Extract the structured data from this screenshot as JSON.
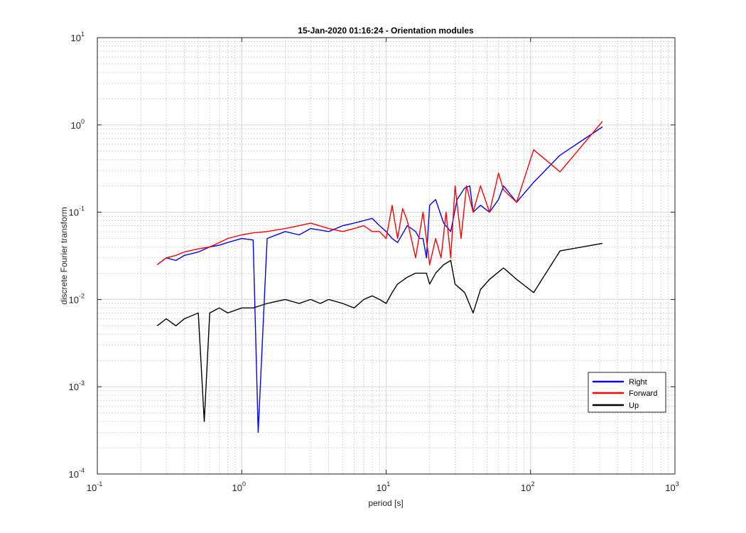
{
  "chart_data": {
    "type": "line",
    "title": "15-Jan-2020 01:16:24 - Orientation modules",
    "xlabel": "period [s]",
    "ylabel": "discrete Fourier transform",
    "xscale": "log",
    "yscale": "log",
    "xlim": [
      0.1,
      1000
    ],
    "ylim": [
      0.0001,
      10
    ],
    "grid": true,
    "minor_grid": true,
    "legend_position": "bottom-right",
    "x_ticks": [
      {
        "base": "10",
        "exp": "-1",
        "value": 0.1
      },
      {
        "base": "10",
        "exp": "0",
        "value": 1
      },
      {
        "base": "10",
        "exp": "1",
        "value": 10
      },
      {
        "base": "10",
        "exp": "2",
        "value": 100
      },
      {
        "base": "10",
        "exp": "3",
        "value": 1000
      }
    ],
    "y_ticks": [
      {
        "base": "10",
        "exp": "-4",
        "value": 0.0001
      },
      {
        "base": "10",
        "exp": "-3",
        "value": 0.001
      },
      {
        "base": "10",
        "exp": "-2",
        "value": 0.01
      },
      {
        "base": "10",
        "exp": "-1",
        "value": 0.1
      },
      {
        "base": "10",
        "exp": "0",
        "value": 1
      },
      {
        "base": "10",
        "exp": "1",
        "value": 10
      }
    ],
    "series": [
      {
        "name": "Right",
        "color": "#0000ff",
        "x": [
          0.26,
          0.3,
          0.35,
          0.4,
          0.5,
          0.6,
          0.7,
          0.8,
          1.0,
          1.2,
          1.3,
          1.5,
          2.0,
          2.5,
          3.0,
          4.0,
          5.0,
          6.0,
          7.0,
          8.0,
          9.0,
          10.0,
          11.0,
          12.0,
          14.0,
          16.0,
          17.0,
          18.0,
          19.0,
          20.0,
          22.0,
          25.0,
          28.0,
          31.0,
          35.0,
          38.0,
          40.0,
          45.0,
          52.0,
          60.0,
          65.0,
          80.0,
          105.0,
          160.0,
          315.0
        ],
        "y": [
          0.025,
          0.03,
          0.028,
          0.032,
          0.035,
          0.04,
          0.042,
          0.045,
          0.05,
          0.048,
          0.0003,
          0.05,
          0.06,
          0.055,
          0.065,
          0.06,
          0.07,
          0.075,
          0.08,
          0.085,
          0.07,
          0.06,
          0.05,
          0.045,
          0.07,
          0.06,
          0.05,
          0.05,
          0.03,
          0.12,
          0.14,
          0.075,
          0.06,
          0.14,
          0.19,
          0.2,
          0.1,
          0.12,
          0.1,
          0.14,
          0.2,
          0.13,
          0.22,
          0.45,
          0.95
        ]
      },
      {
        "name": "Forward",
        "color": "#ff0000",
        "x": [
          0.26,
          0.3,
          0.35,
          0.4,
          0.5,
          0.6,
          0.7,
          0.8,
          1.0,
          1.2,
          1.5,
          2.0,
          2.5,
          3.0,
          4.0,
          5.0,
          6.0,
          7.0,
          8.0,
          9.0,
          10.0,
          11.0,
          12.0,
          13.0,
          14.0,
          16.0,
          18.0,
          20.0,
          22.0,
          24.0,
          26.0,
          28.0,
          30.0,
          33.0,
          36.0,
          40.0,
          45.0,
          52.0,
          60.0,
          65.0,
          80.0,
          105.0,
          160.0,
          315.0
        ],
        "y": [
          0.025,
          0.03,
          0.032,
          0.035,
          0.038,
          0.04,
          0.045,
          0.05,
          0.055,
          0.058,
          0.06,
          0.065,
          0.07,
          0.075,
          0.065,
          0.06,
          0.065,
          0.07,
          0.06,
          0.06,
          0.05,
          0.12,
          0.05,
          0.11,
          0.08,
          0.03,
          0.1,
          0.025,
          0.05,
          0.03,
          0.1,
          0.03,
          0.2,
          0.05,
          0.2,
          0.1,
          0.2,
          0.1,
          0.28,
          0.18,
          0.13,
          0.52,
          0.29,
          1.1
        ]
      },
      {
        "name": "Up",
        "color": "#000000",
        "x": [
          0.26,
          0.3,
          0.35,
          0.4,
          0.5,
          0.55,
          0.6,
          0.7,
          0.8,
          1.0,
          1.2,
          1.5,
          2.0,
          2.5,
          3.0,
          3.5,
          4.0,
          5.0,
          6.0,
          7.0,
          8.0,
          9.0,
          10.0,
          11.0,
          12.0,
          14.0,
          16.0,
          18.0,
          19.0,
          20.0,
          22.0,
          25.0,
          28.0,
          30.0,
          35.0,
          40.0,
          45.0,
          52.0,
          65.0,
          80.0,
          105.0,
          160.0,
          315.0
        ],
        "y": [
          0.005,
          0.006,
          0.005,
          0.006,
          0.007,
          0.0004,
          0.007,
          0.008,
          0.007,
          0.008,
          0.008,
          0.009,
          0.01,
          0.009,
          0.01,
          0.009,
          0.01,
          0.009,
          0.008,
          0.01,
          0.011,
          0.01,
          0.009,
          0.012,
          0.015,
          0.018,
          0.02,
          0.02,
          0.02,
          0.015,
          0.02,
          0.025,
          0.028,
          0.015,
          0.012,
          0.007,
          0.013,
          0.017,
          0.023,
          0.017,
          0.012,
          0.036,
          0.044
        ]
      }
    ]
  }
}
